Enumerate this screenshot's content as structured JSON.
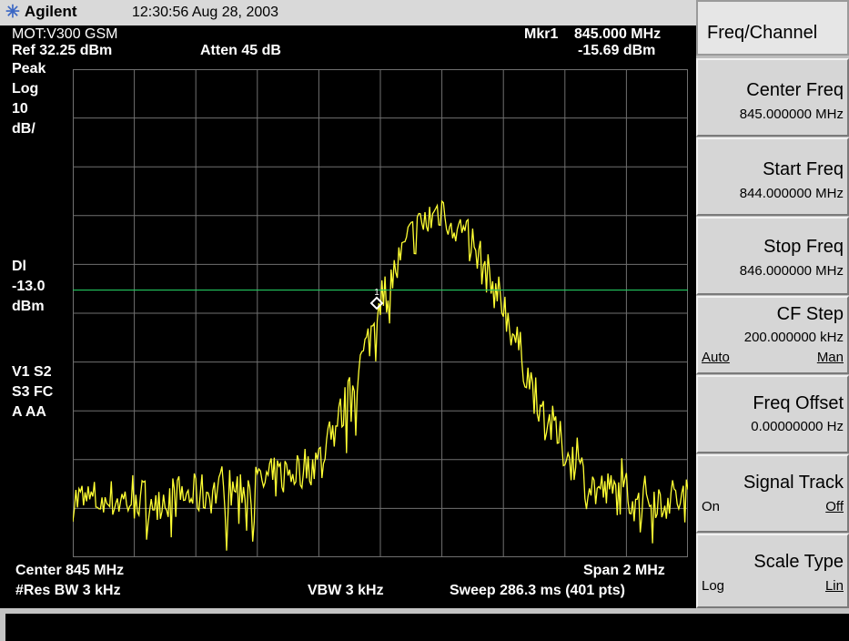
{
  "header": {
    "brand": "Agilent",
    "brand_icon": "agilent-spark-icon",
    "timestamp": "12:30:56  Aug 28, 2003"
  },
  "screen": {
    "model": "MOT:V300 GSM",
    "marker": {
      "label": "Mkr1",
      "freq": "845.000 MHz",
      "level": "-15.69 dBm",
      "id": "1"
    },
    "ref": "Ref 32.25 dBm",
    "atten": "Atten 45 dB",
    "left_labels": {
      "peak": "Peak",
      "log": "Log",
      "scale": "10",
      "unit": "dB/",
      "dl": "Dl",
      "dl_value": "-13.0",
      "dl_unit": "dBm",
      "v1s2": "V1  S2",
      "s3fc": "S3  FC",
      "aaa": "A   AA"
    },
    "center": "Center 845 MHz",
    "span": "Span 2 MHz",
    "rbw": "#Res BW 3 kHz",
    "vbw": "VBW 3 kHz",
    "sweep": "Sweep 286.3 ms (401 pts)"
  },
  "softkeys": {
    "menu_title": "Freq/Channel",
    "center_freq": {
      "label": "Center Freq",
      "value": "845.000000 MHz"
    },
    "start_freq": {
      "label": "Start Freq",
      "value": "844.000000 MHz"
    },
    "stop_freq": {
      "label": "Stop Freq",
      "value": "846.000000 MHz"
    },
    "cf_step": {
      "label": "CF Step",
      "value": "200.000000 kHz",
      "opt_left": "Auto",
      "opt_right": "Man"
    },
    "freq_offset": {
      "label": "Freq Offset",
      "value": "0.00000000  Hz"
    },
    "signal_track": {
      "label": "Signal Track",
      "opt_left": "On",
      "opt_right": "Off"
    },
    "scale_type": {
      "label": "Scale Type",
      "opt_left": "Log",
      "opt_right": "Lin"
    }
  },
  "colors": {
    "trace": "#ffff33",
    "display_line": "#22c55e",
    "grid": "#707070",
    "marker": "#ffffff"
  },
  "chart_data": {
    "type": "line",
    "x_range_mhz": [
      844,
      846
    ],
    "center_mhz": 845,
    "span_mhz": 2,
    "ref_level_dbm": 32.25,
    "scale_db_per_div": 10,
    "ylim_dbm": [
      -67.75,
      32.25
    ],
    "display_line_dbm": -13.0,
    "marker": {
      "x_mhz": 845.0,
      "y_dbm": -15.69
    },
    "grid": true,
    "points": 401,
    "shape_profile": [
      [
        844.0,
        -56
      ],
      [
        844.2,
        -56
      ],
      [
        844.4,
        -55
      ],
      [
        844.6,
        -53
      ],
      [
        844.8,
        -48
      ],
      [
        844.9,
        -35
      ],
      [
        845.0,
        -16
      ],
      [
        845.1,
        -2
      ],
      [
        845.2,
        4
      ],
      [
        845.3,
        -4
      ],
      [
        845.4,
        -16
      ],
      [
        845.5,
        -34
      ],
      [
        845.6,
        -46
      ],
      [
        845.7,
        -54
      ],
      [
        845.8,
        -55
      ],
      [
        846.0,
        -56
      ]
    ]
  }
}
